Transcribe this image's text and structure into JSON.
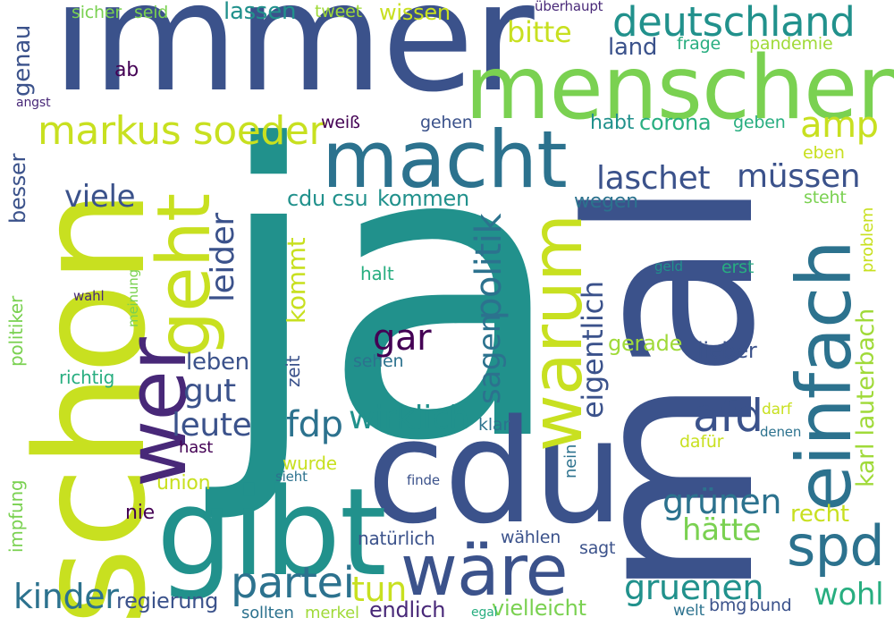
{
  "cloud": {
    "words": [
      {
        "text": "ja",
        "color": "#21918c"
      },
      {
        "text": "mal",
        "color": "#3b528b"
      },
      {
        "text": "immer",
        "color": "#3b528b"
      },
      {
        "text": "schon",
        "color": "#c8e020"
      },
      {
        "text": "cdu",
        "color": "#3b528b"
      },
      {
        "text": "gibt",
        "color": "#21918c"
      },
      {
        "text": "menschen",
        "color": "#7ad151"
      },
      {
        "text": "macht",
        "color": "#2c728e"
      },
      {
        "text": "wer",
        "color": "#482878"
      },
      {
        "text": "geht",
        "color": "#c8e020"
      },
      {
        "text": "warum",
        "color": "#c8e020"
      },
      {
        "text": "einfach",
        "color": "#2c728e"
      },
      {
        "text": "wäre",
        "color": "#3b528b"
      },
      {
        "text": "deutschland",
        "color": "#21918c"
      },
      {
        "text": "spd",
        "color": "#2c728e"
      },
      {
        "text": "markus soeder",
        "color": "#c8e020"
      },
      {
        "text": "partei",
        "color": "#2c728e"
      },
      {
        "text": "politik",
        "color": "#2c728e"
      },
      {
        "text": "afd",
        "color": "#3b528b"
      },
      {
        "text": "gar",
        "color": "#440154"
      },
      {
        "text": "amp",
        "color": "#c8e020"
      },
      {
        "text": "laschet",
        "color": "#3b528b"
      },
      {
        "text": "müssen",
        "color": "#3b528b"
      },
      {
        "text": "leider",
        "color": "#3b528b"
      },
      {
        "text": "fdp",
        "color": "#2c728e"
      },
      {
        "text": "grünen",
        "color": "#2c728e"
      },
      {
        "text": "eigentlich",
        "color": "#3b528b"
      },
      {
        "text": "wirklich",
        "color": "#21918c"
      },
      {
        "text": "gruenen",
        "color": "#21918c"
      },
      {
        "text": "karl lauterbach",
        "color": "#a0da39"
      },
      {
        "text": "kinder",
        "color": "#2c728e"
      },
      {
        "text": "wohl",
        "color": "#28ae80"
      },
      {
        "text": "leute",
        "color": "#3b528b"
      },
      {
        "text": "gut",
        "color": "#3b528b"
      },
      {
        "text": "viele",
        "color": "#3b528b"
      },
      {
        "text": "sagen",
        "color": "#2c728e"
      },
      {
        "text": "tun",
        "color": "#c8e020"
      },
      {
        "text": "hätte",
        "color": "#7ad151"
      },
      {
        "text": "bitte",
        "color": "#c8e020"
      },
      {
        "text": "kommt",
        "color": "#c8e020"
      },
      {
        "text": "cdu csu",
        "color": "#21918c"
      },
      {
        "text": "kommen",
        "color": "#21918c"
      },
      {
        "text": "regierung",
        "color": "#3b528b"
      },
      {
        "text": "genau",
        "color": "#3b528b"
      },
      {
        "text": "leben",
        "color": "#3b528b"
      },
      {
        "text": "lassen",
        "color": "#21918c"
      },
      {
        "text": "corona",
        "color": "#28ae80"
      },
      {
        "text": "land",
        "color": "#3b528b"
      },
      {
        "text": "recht",
        "color": "#c8e020"
      },
      {
        "text": "besser",
        "color": "#3b528b"
      },
      {
        "text": "vielleicht",
        "color": "#7ad151"
      },
      {
        "text": "endlich",
        "color": "#482878"
      },
      {
        "text": "gerade",
        "color": "#a0da39"
      },
      {
        "text": "lieber",
        "color": "#3b528b"
      },
      {
        "text": "habt",
        "color": "#21918c"
      },
      {
        "text": "wegen",
        "color": "#2c728e"
      },
      {
        "text": "sicher",
        "color": "#7ad151"
      },
      {
        "text": "seid",
        "color": "#7ad151"
      },
      {
        "text": "tweet",
        "color": "#a0da39"
      },
      {
        "text": "wissen",
        "color": "#c8e020"
      },
      {
        "text": "frage",
        "color": "#28ae80"
      },
      {
        "text": "pandemie",
        "color": "#a0da39"
      },
      {
        "text": "ab",
        "color": "#440154"
      },
      {
        "text": "weiß",
        "color": "#440154"
      },
      {
        "text": "gehen",
        "color": "#3b528b"
      },
      {
        "text": "geben",
        "color": "#28ae80"
      },
      {
        "text": "eben",
        "color": "#c8e020"
      },
      {
        "text": "steht",
        "color": "#7ad151"
      },
      {
        "text": "problem",
        "color": "#c8e020"
      },
      {
        "text": "halt",
        "color": "#28ae80"
      },
      {
        "text": "erst",
        "color": "#28ae80"
      },
      {
        "text": "geld",
        "color": "#21918c"
      },
      {
        "text": "zeit",
        "color": "#3b528b"
      },
      {
        "text": "sehen",
        "color": "#2c728e"
      },
      {
        "text": "richtig",
        "color": "#28ae80"
      },
      {
        "text": "politiker",
        "color": "#7ad151"
      },
      {
        "text": "meinung",
        "color": "#7ad151"
      },
      {
        "text": "wahl",
        "color": "#482878"
      },
      {
        "text": "impfung",
        "color": "#7ad151"
      },
      {
        "text": "hast",
        "color": "#440154"
      },
      {
        "text": "union",
        "color": "#c8e020"
      },
      {
        "text": "nie",
        "color": "#440154"
      },
      {
        "text": "wurde",
        "color": "#c8e020"
      },
      {
        "text": "sieht",
        "color": "#2c728e"
      },
      {
        "text": "natürlich",
        "color": "#3b528b"
      },
      {
        "text": "klar",
        "color": "#2c728e"
      },
      {
        "text": "nein",
        "color": "#2c728e"
      },
      {
        "text": "finde",
        "color": "#3b528b"
      },
      {
        "text": "wählen",
        "color": "#3b528b"
      },
      {
        "text": "sagt",
        "color": "#3b528b"
      },
      {
        "text": "sollten",
        "color": "#2c728e"
      },
      {
        "text": "merkel",
        "color": "#a0da39"
      },
      {
        "text": "egal",
        "color": "#28ae80"
      },
      {
        "text": "dafür",
        "color": "#c8e020"
      },
      {
        "text": "darf",
        "color": "#c8e020"
      },
      {
        "text": "denen",
        "color": "#2c728e"
      },
      {
        "text": "welt",
        "color": "#2c728e"
      },
      {
        "text": "bmg",
        "color": "#3b528b"
      },
      {
        "text": "bund",
        "color": "#3b528b"
      },
      {
        "text": "überhaupt",
        "color": "#482878"
      },
      {
        "text": "angst",
        "color": "#482878"
      }
    ]
  }
}
